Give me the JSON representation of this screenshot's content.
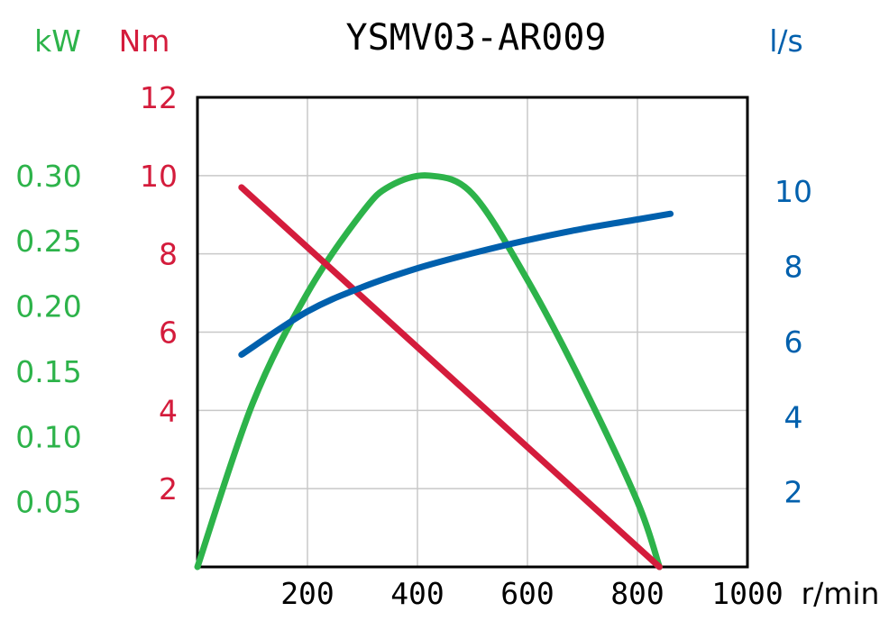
{
  "chart_data": {
    "type": "line",
    "title": "YSMV03-AR009",
    "x_axis": {
      "label": "r/min",
      "range": [
        0,
        1000
      ],
      "ticks": [
        200,
        400,
        600,
        800,
        1000
      ],
      "tick_labels": [
        "200",
        "400",
        "600",
        "800",
        "1000"
      ]
    },
    "y_axes": {
      "power": {
        "unit": "kW",
        "color": "#2db34a",
        "range": [
          0,
          0.36
        ],
        "ticks": [
          0.05,
          0.1,
          0.15,
          0.2,
          0.25,
          0.3
        ],
        "tick_labels": [
          "0.05",
          "0.10",
          "0.15",
          "0.20",
          "0.25",
          "0.30"
        ]
      },
      "torque": {
        "unit": "Nm",
        "color": "#d41c3c",
        "range": [
          0,
          12
        ],
        "ticks": [
          2,
          4,
          6,
          8,
          10,
          12
        ],
        "tick_labels": [
          "2",
          "4",
          "6",
          "8",
          "10",
          "12"
        ]
      },
      "flow": {
        "unit": "l/s",
        "color": "#0060ad",
        "range": [
          0,
          12.5
        ],
        "ticks": [
          2,
          4,
          6,
          8,
          10
        ],
        "tick_labels": [
          "2",
          "4",
          "6",
          "8",
          "10"
        ]
      }
    },
    "grid": true,
    "series": [
      {
        "axis": "power",
        "color": "#2db34a",
        "x": [
          0,
          100,
          200,
          300,
          350,
          420,
          500,
          600,
          700,
          800,
          840
        ],
        "y": [
          0,
          0.125,
          0.21,
          0.272,
          0.292,
          0.3,
          0.286,
          0.22,
          0.14,
          0.05,
          0
        ]
      },
      {
        "axis": "torque",
        "color": "#d41c3c",
        "x": [
          80,
          840
        ],
        "y": [
          9.7,
          0
        ]
      },
      {
        "axis": "flow",
        "color": "#0060ad",
        "x": [
          80,
          200,
          300,
          400,
          500,
          600,
          700,
          800,
          860
        ],
        "y": [
          5.65,
          6.8,
          7.45,
          7.95,
          8.35,
          8.7,
          9.0,
          9.25,
          9.4
        ]
      }
    ]
  }
}
